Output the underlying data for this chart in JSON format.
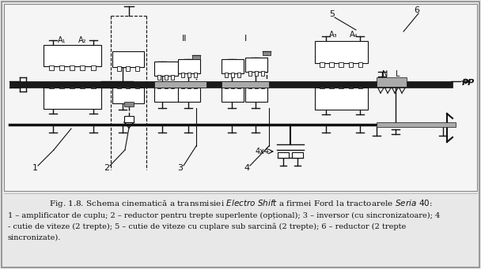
{
  "fig_width": 6.08,
  "fig_height": 3.41,
  "dpi": 100,
  "bg_color": "#e8e8e8",
  "line_color": "#111111",
  "caption_line2": "1 – amplificator de cuplu; 2 – reductor pentru trepte superlente (opțional); 3 – inversor (cu sincronizatoare); 4",
  "caption_line3": "- cutie de viteze (2 trepte); 5 – cutie de viteze cu cuplare sub sarcină (2 trepte); 6 – reductor (2 trepte",
  "caption_line4": "sincronizate)."
}
